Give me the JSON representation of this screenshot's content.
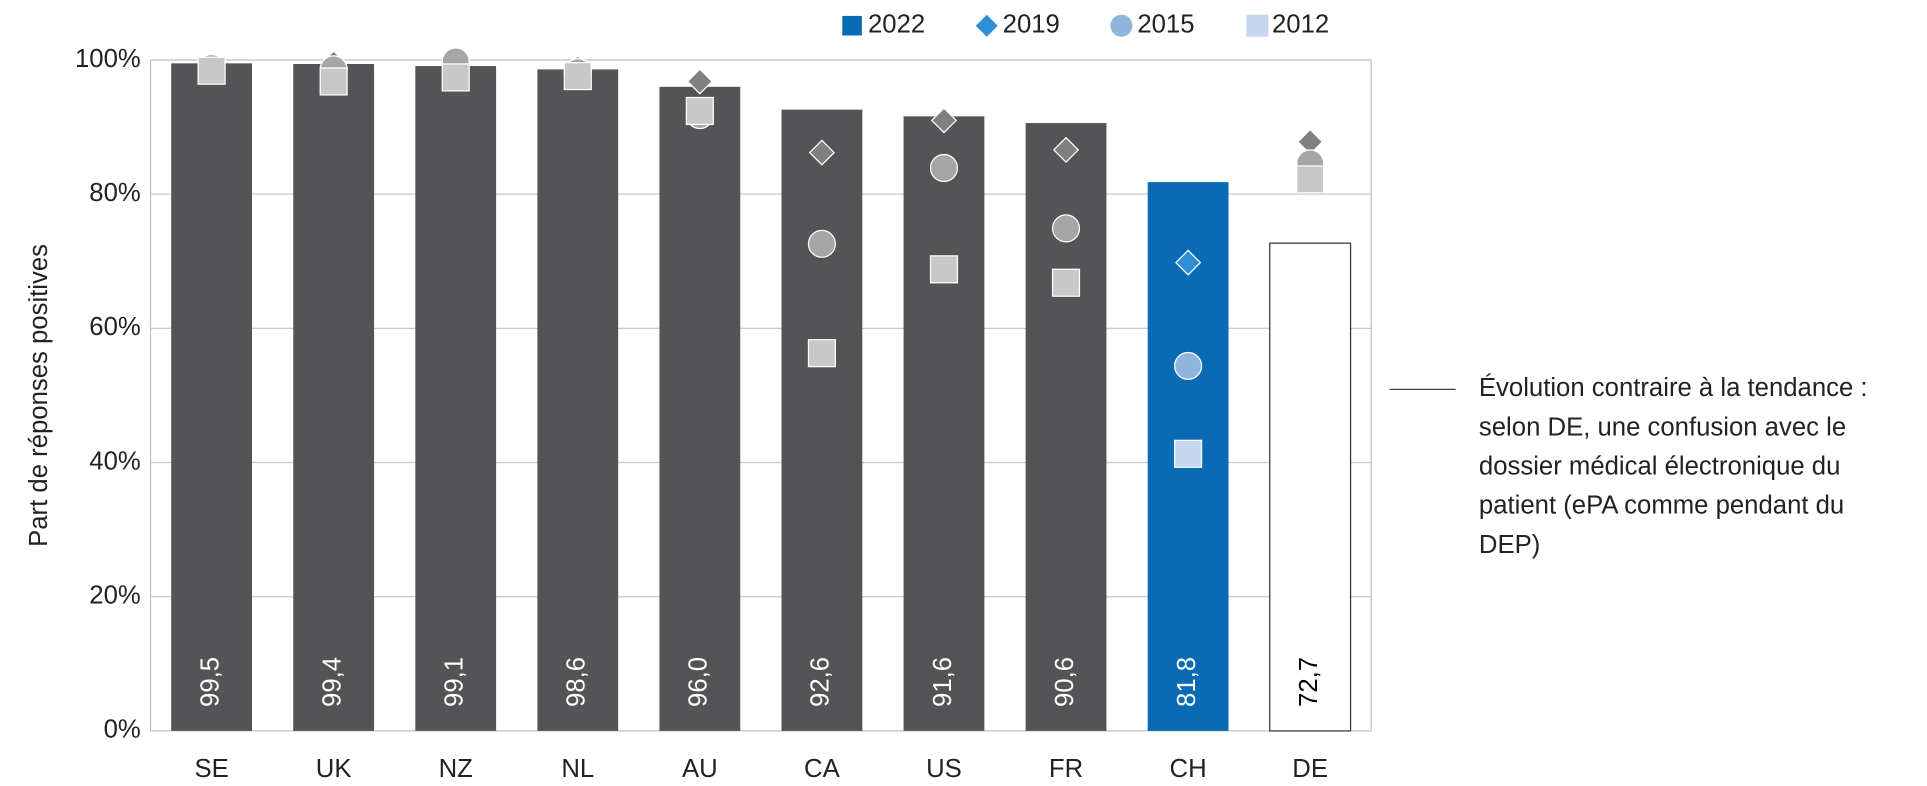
{
  "chart_data": {
    "type": "bar",
    "y_label": "Part de réponses positives",
    "categories": [
      "SE",
      "UK",
      "NZ",
      "NL",
      "AU",
      "CA",
      "US",
      "FR",
      "CH",
      "DE"
    ],
    "series": [
      {
        "name": "2022",
        "kind": "bar",
        "color": "#0a6bb5",
        "values": [
          99.5,
          99.4,
          99.1,
          98.6,
          96.0,
          92.6,
          91.6,
          90.6,
          81.8,
          72.7
        ],
        "value_labels": [
          "99,5",
          "99,4",
          "99,1",
          "98,6",
          "96,0",
          "92,6",
          "91,6",
          "90,6",
          "81,8",
          "72,7"
        ],
        "bar_colors": [
          "#545456",
          "#545456",
          "#545456",
          "#545456",
          "#545456",
          "#545456",
          "#545456",
          "#545456",
          "#0a6bb5",
          "#ffffff"
        ]
      },
      {
        "name": "2019",
        "kind": "diamond",
        "color": "#2e8fd6",
        "marker_color": "#808080",
        "values": [
          98.4,
          99.5,
          99.0,
          98.8,
          96.8,
          86.2,
          91.0,
          86.6,
          69.8,
          87.8
        ]
      },
      {
        "name": "2015",
        "kind": "circle",
        "color": "#8fb4de",
        "marker_color": "#a6a6a6",
        "values": [
          98.8,
          98.6,
          99.8,
          98.2,
          91.8,
          72.6,
          83.9,
          74.9,
          54.4,
          84.6
        ]
      },
      {
        "name": "2012",
        "kind": "square",
        "color": "#c5d7ee",
        "marker_color": "#c8c8c8",
        "values": [
          98.4,
          96.8,
          97.4,
          97.6,
          92.4,
          56.3,
          68.8,
          66.8,
          41.3,
          82.2
        ]
      }
    ],
    "ylim": [
      0,
      100
    ],
    "yticks": [
      {
        "value": 0,
        "label": "0%"
      },
      {
        "value": 20,
        "label": "20%"
      },
      {
        "value": 40,
        "label": "40%"
      },
      {
        "value": 60,
        "label": "60%"
      },
      {
        "value": 80,
        "label": "80%"
      },
      {
        "value": 100,
        "label": "100%"
      }
    ],
    "grid": true,
    "legend": "top",
    "annotation": [
      "Évolution contraire à la tendance :",
      "selon DE, une confusion avec le",
      "dossier médical électronique du",
      "patient (ePA comme pendant du",
      "DEP)"
    ]
  }
}
